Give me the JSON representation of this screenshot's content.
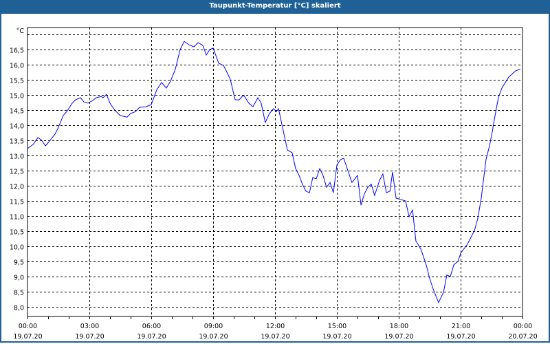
{
  "window": {
    "title": "Taupunkt-Temperatur [°C] skaliert"
  },
  "colors": {
    "titlebar": "#1f6096",
    "series": "#0000ff",
    "grid": "#000000"
  },
  "chart_data": {
    "type": "line",
    "title": "Taupunkt-Temperatur [°C] skaliert",
    "ylabel": "°C",
    "xlabel": "",
    "ylim": [
      7.68,
      17.23
    ],
    "xlim_hours": [
      0,
      24
    ],
    "yticks": [
      8.0,
      8.5,
      9.0,
      9.5,
      10.0,
      10.5,
      11.0,
      11.5,
      12.0,
      12.5,
      13.0,
      13.5,
      14.0,
      14.5,
      15.0,
      15.5,
      16.0,
      16.5,
      17.0
    ],
    "ytick_labels": [
      "8,0",
      "8,5",
      "9,0",
      "9,5",
      "10,0",
      "10,5",
      "11,0",
      "11,5",
      "12,0",
      "12,5",
      "13,0",
      "13,5",
      "14,0",
      "14,5",
      "15,0",
      "15,5",
      "16,0",
      "16,5",
      ""
    ],
    "xticks": [
      {
        "hour": 0,
        "time": "00:00",
        "date": "19.07.20"
      },
      {
        "hour": 3,
        "time": "03:00",
        "date": "19.07.20"
      },
      {
        "hour": 6,
        "time": "06:00",
        "date": "19.07.20"
      },
      {
        "hour": 9,
        "time": "09:00",
        "date": "19.07.20"
      },
      {
        "hour": 12,
        "time": "12:00",
        "date": "19.07.20"
      },
      {
        "hour": 15,
        "time": "15:00",
        "date": "19.07.20"
      },
      {
        "hour": 18,
        "time": "18:00",
        "date": "19.07.20"
      },
      {
        "hour": 21,
        "time": "21:00",
        "date": "19.07.20"
      },
      {
        "hour": 24,
        "time": "00:00",
        "date": "20.07.20"
      }
    ],
    "grid": true,
    "series": [
      {
        "name": "Taupunkt-Temperatur",
        "hours": [
          0,
          0.27,
          0.5,
          0.67,
          0.87,
          1.07,
          1.33,
          1.5,
          1.73,
          1.9,
          2.17,
          2.33,
          2.57,
          2.73,
          2.93,
          3.17,
          3.33,
          3.57,
          3.67,
          3.83,
          4.0,
          4.23,
          4.5,
          4.83,
          5.0,
          5.23,
          5.43,
          5.73,
          6.0,
          6.27,
          6.5,
          6.73,
          6.93,
          7.17,
          7.4,
          7.6,
          7.83,
          8.07,
          8.27,
          8.5,
          8.67,
          8.83,
          9.0,
          9.27,
          9.5,
          9.67,
          9.83,
          10.07,
          10.27,
          10.4,
          10.5,
          10.73,
          10.93,
          11.17,
          11.33,
          11.53,
          11.73,
          11.93,
          12.07,
          12.17,
          12.4,
          12.6,
          12.83,
          13.0,
          13.17,
          13.33,
          13.5,
          13.67,
          13.83,
          14.0,
          14.17,
          14.33,
          14.5,
          14.67,
          14.83,
          15.0,
          15.17,
          15.33,
          15.5,
          15.73,
          16.0,
          16.17,
          16.33,
          16.5,
          16.67,
          16.83,
          17.07,
          17.23,
          17.4,
          17.57,
          17.7,
          17.87,
          18.07,
          18.33,
          18.5,
          18.67,
          18.83,
          19.07,
          19.33,
          19.5,
          19.67,
          19.93,
          20.17,
          20.33,
          20.5,
          20.67,
          20.87,
          21.0,
          21.33,
          21.67,
          21.83,
          22.0,
          22.23,
          22.4,
          22.53,
          22.67,
          22.83,
          23.0,
          23.33,
          23.67,
          23.9
        ],
        "values": [
          13.23,
          13.36,
          13.59,
          13.52,
          13.32,
          13.48,
          13.7,
          13.93,
          14.32,
          14.45,
          14.73,
          14.84,
          14.91,
          14.77,
          14.73,
          14.82,
          14.91,
          14.95,
          14.91,
          15.02,
          14.73,
          14.5,
          14.32,
          14.27,
          14.39,
          14.45,
          14.59,
          14.61,
          14.68,
          15.18,
          15.41,
          15.23,
          15.45,
          15.86,
          16.5,
          16.77,
          16.66,
          16.59,
          16.73,
          16.64,
          16.32,
          16.5,
          16.55,
          16.05,
          15.98,
          15.75,
          15.52,
          14.84,
          14.84,
          14.95,
          14.98,
          14.73,
          14.61,
          14.91,
          14.73,
          14.09,
          14.39,
          14.55,
          14.45,
          14.55,
          13.82,
          13.18,
          13.09,
          12.57,
          12.34,
          12.05,
          11.82,
          11.77,
          12.27,
          12.23,
          12.57,
          12.34,
          11.95,
          12.11,
          11.77,
          12.68,
          12.86,
          12.91,
          12.57,
          12.11,
          12.34,
          11.36,
          11.73,
          11.95,
          12.05,
          11.68,
          12.18,
          12.39,
          11.77,
          11.82,
          12.45,
          11.59,
          11.55,
          11.5,
          10.98,
          11.2,
          10.18,
          9.91,
          9.39,
          8.93,
          8.59,
          8.14,
          8.48,
          9.05,
          9.0,
          9.39,
          9.5,
          9.77,
          10.07,
          10.52,
          10.91,
          11.59,
          12.86,
          13.32,
          13.77,
          14.32,
          14.91,
          15.23,
          15.59,
          15.8,
          15.86
        ]
      }
    ]
  }
}
